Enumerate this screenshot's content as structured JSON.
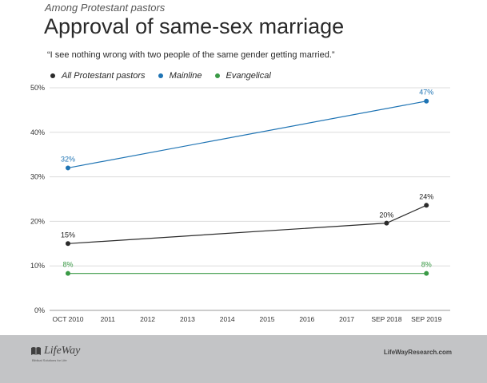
{
  "header": {
    "kicker": "Among Protestant pastors",
    "title": "Approval of same-sex marriage",
    "quote": "“I see nothing wrong with two people of the same gender getting married.”"
  },
  "colors": {
    "all": "#2b2b2b",
    "mainline": "#1f74b4",
    "evangelical": "#3a9a46",
    "footer": "#c3c4c6"
  },
  "chart_data": {
    "type": "line",
    "categories": [
      "OCT 2010",
      "2011",
      "2012",
      "2013",
      "2014",
      "2015",
      "2016",
      "2017",
      "SEP 2018",
      "SEP 2019"
    ],
    "x": [
      0,
      1,
      2,
      3,
      4,
      5,
      6,
      7,
      8,
      9
    ],
    "ylim": [
      0,
      50
    ],
    "yticks": [
      0,
      10,
      20,
      30,
      40,
      50
    ],
    "ytick_labels": [
      "0%",
      "10%",
      "20%",
      "30%",
      "40%",
      "50%"
    ],
    "grid": true,
    "legend_position": "top-left",
    "series": [
      {
        "name": "All Protestant pastors",
        "color": "#2b2b2b",
        "points": [
          {
            "x": 0,
            "y": 15,
            "label": "15%"
          },
          {
            "x": 8,
            "y": 19.6,
            "label": "20%"
          },
          {
            "x": 9,
            "y": 23.6,
            "label": "24%"
          }
        ]
      },
      {
        "name": "Mainline",
        "color": "#1f74b4",
        "points": [
          {
            "x": 0,
            "y": 32,
            "label": "32%"
          },
          {
            "x": 9,
            "y": 47,
            "label": "47%"
          }
        ]
      },
      {
        "name": "Evangelical",
        "color": "#3a9a46",
        "points": [
          {
            "x": 0,
            "y": 8.3,
            "label": "8%"
          },
          {
            "x": 9,
            "y": 8.3,
            "label": "8%"
          }
        ]
      }
    ]
  },
  "footer": {
    "logo_text": "LifeWay",
    "tagline": "Biblical Solutions for Life",
    "site": "LifeWayResearch.com"
  }
}
